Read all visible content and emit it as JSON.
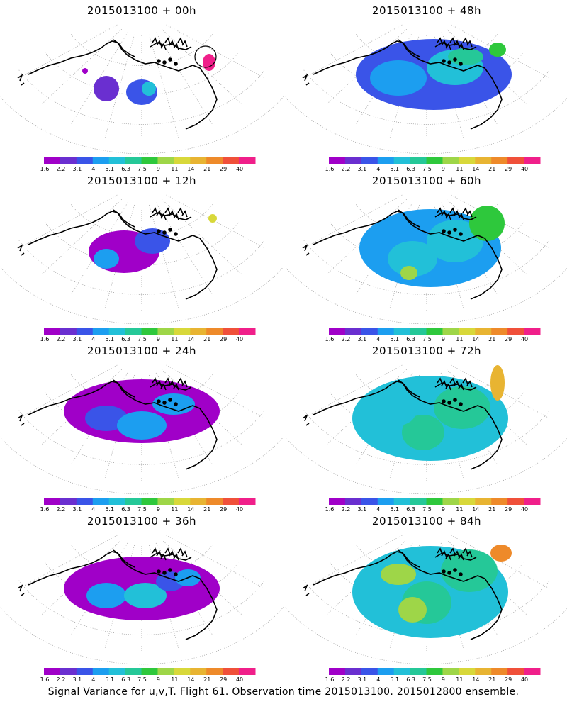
{
  "panels": [
    {
      "title": "2015013100 + 00h",
      "variant": 0
    },
    {
      "title": "2015013100 + 48h",
      "variant": 4
    },
    {
      "title": "2015013100 + 12h",
      "variant": 1
    },
    {
      "title": "2015013100 + 60h",
      "variant": 5
    },
    {
      "title": "2015013100 + 24h",
      "variant": 2
    },
    {
      "title": "2015013100 + 72h",
      "variant": 6
    },
    {
      "title": "2015013100 + 36h",
      "variant": 3
    },
    {
      "title": "2015013100 + 84h",
      "variant": 7
    }
  ],
  "colorbar": {
    "labels": [
      "1.6",
      "2.2",
      "3.1",
      "4",
      "5.1",
      "6.3",
      "7.5",
      "9",
      "11",
      "14",
      "21",
      "29",
      "40"
    ],
    "colors": [
      "#a000c8",
      "#6a2fd0",
      "#3a54e8",
      "#1c9ef0",
      "#22c0d8",
      "#25c898",
      "#2ec83c",
      "#9ed648",
      "#d8d83a",
      "#e8b432",
      "#ee8a2a",
      "#f0503a",
      "#f01f8a"
    ]
  },
  "footer": "Signal Variance for u,v,T. Flight 61. Observation time 2015013100. 2015012800 ensemble."
}
